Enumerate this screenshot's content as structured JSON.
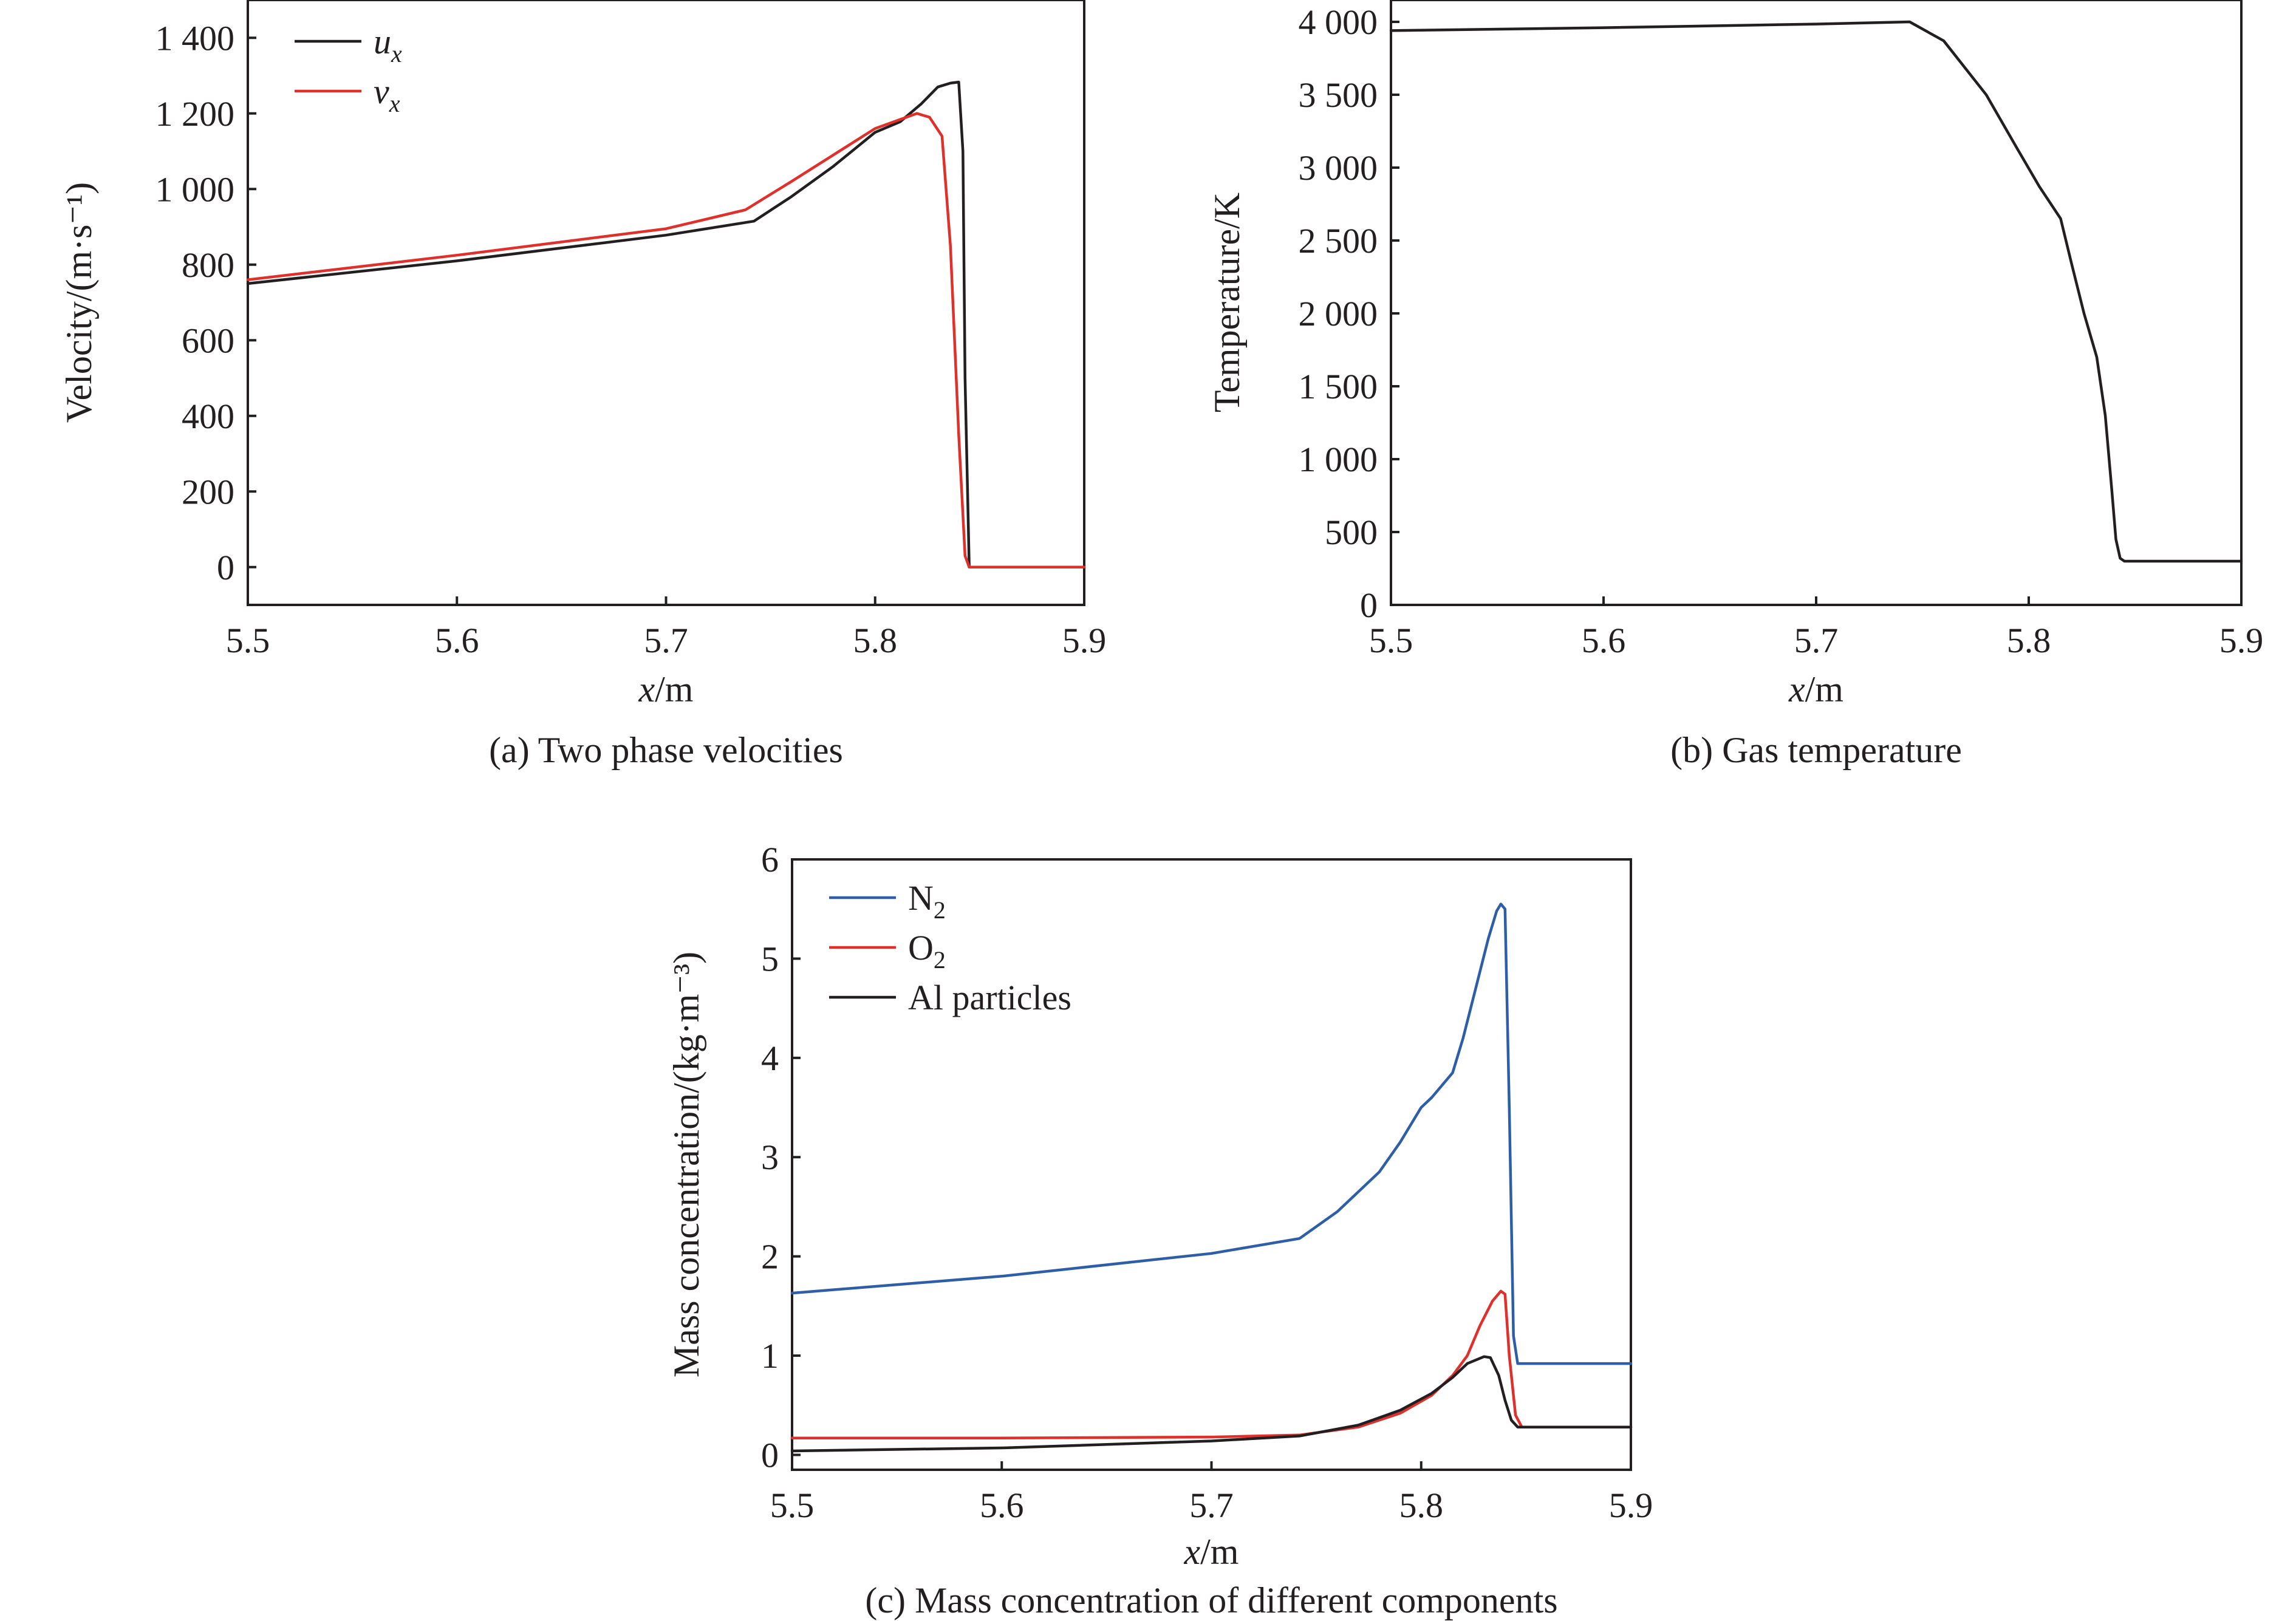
{
  "chart_data": [
    {
      "type": "line",
      "caption": "(a) Two phase velocities",
      "xlabel": "x/m",
      "ylabel": "Velocity/(m·s⁻¹)",
      "xlim": [
        5.5,
        5.9
      ],
      "ylim": [
        -100,
        1500
      ],
      "xticks": [
        5.5,
        5.6,
        5.7,
        5.8,
        5.9
      ],
      "xtick_labels": [
        "5.5",
        "5.6",
        "5.7",
        "5.8",
        "5.9"
      ],
      "yticks": [
        0,
        200,
        400,
        600,
        800,
        1000,
        1200,
        1400
      ],
      "ytick_labels": [
        "0",
        "200",
        "400",
        "600",
        "800",
        "1 000",
        "1 200",
        "1 400"
      ],
      "legend_position": "top-left",
      "series": [
        {
          "name": "u",
          "subscript": "x",
          "color": "#231f20",
          "x": [
            5.5,
            5.6,
            5.7,
            5.742,
            5.76,
            5.78,
            5.8,
            5.812,
            5.822,
            5.83,
            5.836,
            5.84,
            5.842,
            5.843,
            5.845,
            5.9
          ],
          "y": [
            750,
            810,
            878,
            915,
            980,
            1060,
            1150,
            1178,
            1225,
            1270,
            1280,
            1283,
            1100,
            500,
            0,
            0
          ]
        },
        {
          "name": "v",
          "subscript": "x",
          "color": "#e0302b",
          "x": [
            5.5,
            5.6,
            5.7,
            5.738,
            5.76,
            5.78,
            5.8,
            5.82,
            5.826,
            5.832,
            5.836,
            5.84,
            5.843,
            5.845,
            5.9
          ],
          "y": [
            760,
            825,
            895,
            945,
            1020,
            1090,
            1160,
            1200,
            1190,
            1140,
            850,
            350,
            30,
            0,
            0
          ]
        }
      ]
    },
    {
      "type": "line",
      "caption": "(b) Gas temperature",
      "xlabel": "x/m",
      "ylabel": "Temperature/K",
      "xlim": [
        5.5,
        5.9
      ],
      "ylim": [
        0,
        4150
      ],
      "xticks": [
        5.5,
        5.6,
        5.7,
        5.8,
        5.9
      ],
      "xtick_labels": [
        "5.5",
        "5.6",
        "5.7",
        "5.8",
        "5.9"
      ],
      "yticks": [
        0,
        500,
        1000,
        1500,
        2000,
        2500,
        3000,
        3500,
        4000
      ],
      "ytick_labels": [
        "0",
        "500",
        "1 000",
        "1 500",
        "2 000",
        "2 500",
        "3 000",
        "3 500",
        "4 000"
      ],
      "series": [
        {
          "color": "#231f20",
          "x": [
            5.5,
            5.6,
            5.7,
            5.744,
            5.76,
            5.78,
            5.795,
            5.805,
            5.815,
            5.82,
            5.826,
            5.832,
            5.836,
            5.839,
            5.841,
            5.843,
            5.845,
            5.9
          ],
          "y": [
            3940,
            3960,
            3985,
            4000,
            3870,
            3500,
            3120,
            2870,
            2650,
            2350,
            2000,
            1700,
            1300,
            800,
            450,
            320,
            300,
            300
          ]
        }
      ]
    },
    {
      "type": "line",
      "caption": "(c) Mass concentration of different components",
      "xlabel": "x/m",
      "ylabel": "Mass concentration/(kg·m⁻³)",
      "xlim": [
        5.5,
        5.9
      ],
      "ylim": [
        -0.15,
        6
      ],
      "xticks": [
        5.5,
        5.6,
        5.7,
        5.8,
        5.9
      ],
      "xtick_labels": [
        "5.5",
        "5.6",
        "5.7",
        "5.8",
        "5.9"
      ],
      "yticks": [
        0,
        1,
        2,
        3,
        4,
        5,
        6
      ],
      "ytick_labels": [
        "0",
        "1",
        "2",
        "3",
        "4",
        "5",
        "6"
      ],
      "legend_position": "top-left",
      "series": [
        {
          "name": "N",
          "subscript": "2",
          "color": "#2e5ea8",
          "x": [
            5.5,
            5.6,
            5.7,
            5.742,
            5.76,
            5.78,
            5.79,
            5.8,
            5.805,
            5.815,
            5.82,
            5.826,
            5.832,
            5.836,
            5.838,
            5.84,
            5.842,
            5.844,
            5.846,
            5.9
          ],
          "y": [
            1.63,
            1.8,
            2.03,
            2.18,
            2.45,
            2.85,
            3.15,
            3.5,
            3.6,
            3.85,
            4.2,
            4.7,
            5.2,
            5.48,
            5.55,
            5.5,
            3.5,
            1.2,
            0.92,
            0.92
          ]
        },
        {
          "name": "O",
          "subscript": "2",
          "color": "#e0302b",
          "x": [
            5.5,
            5.6,
            5.7,
            5.742,
            5.77,
            5.79,
            5.805,
            5.815,
            5.822,
            5.828,
            5.834,
            5.838,
            5.84,
            5.842,
            5.845,
            5.848,
            5.9
          ],
          "y": [
            0.17,
            0.17,
            0.18,
            0.2,
            0.28,
            0.42,
            0.6,
            0.8,
            1.0,
            1.3,
            1.55,
            1.65,
            1.62,
            1.0,
            0.4,
            0.28,
            0.28
          ]
        },
        {
          "name": "Al particles",
          "color": "#231f20",
          "x": [
            5.5,
            5.6,
            5.7,
            5.742,
            5.77,
            5.79,
            5.805,
            5.815,
            5.822,
            5.83,
            5.833,
            5.837,
            5.84,
            5.843,
            5.846,
            5.9
          ],
          "y": [
            0.04,
            0.07,
            0.14,
            0.19,
            0.3,
            0.45,
            0.62,
            0.78,
            0.92,
            0.99,
            0.98,
            0.8,
            0.55,
            0.35,
            0.28,
            0.28
          ]
        }
      ]
    }
  ]
}
